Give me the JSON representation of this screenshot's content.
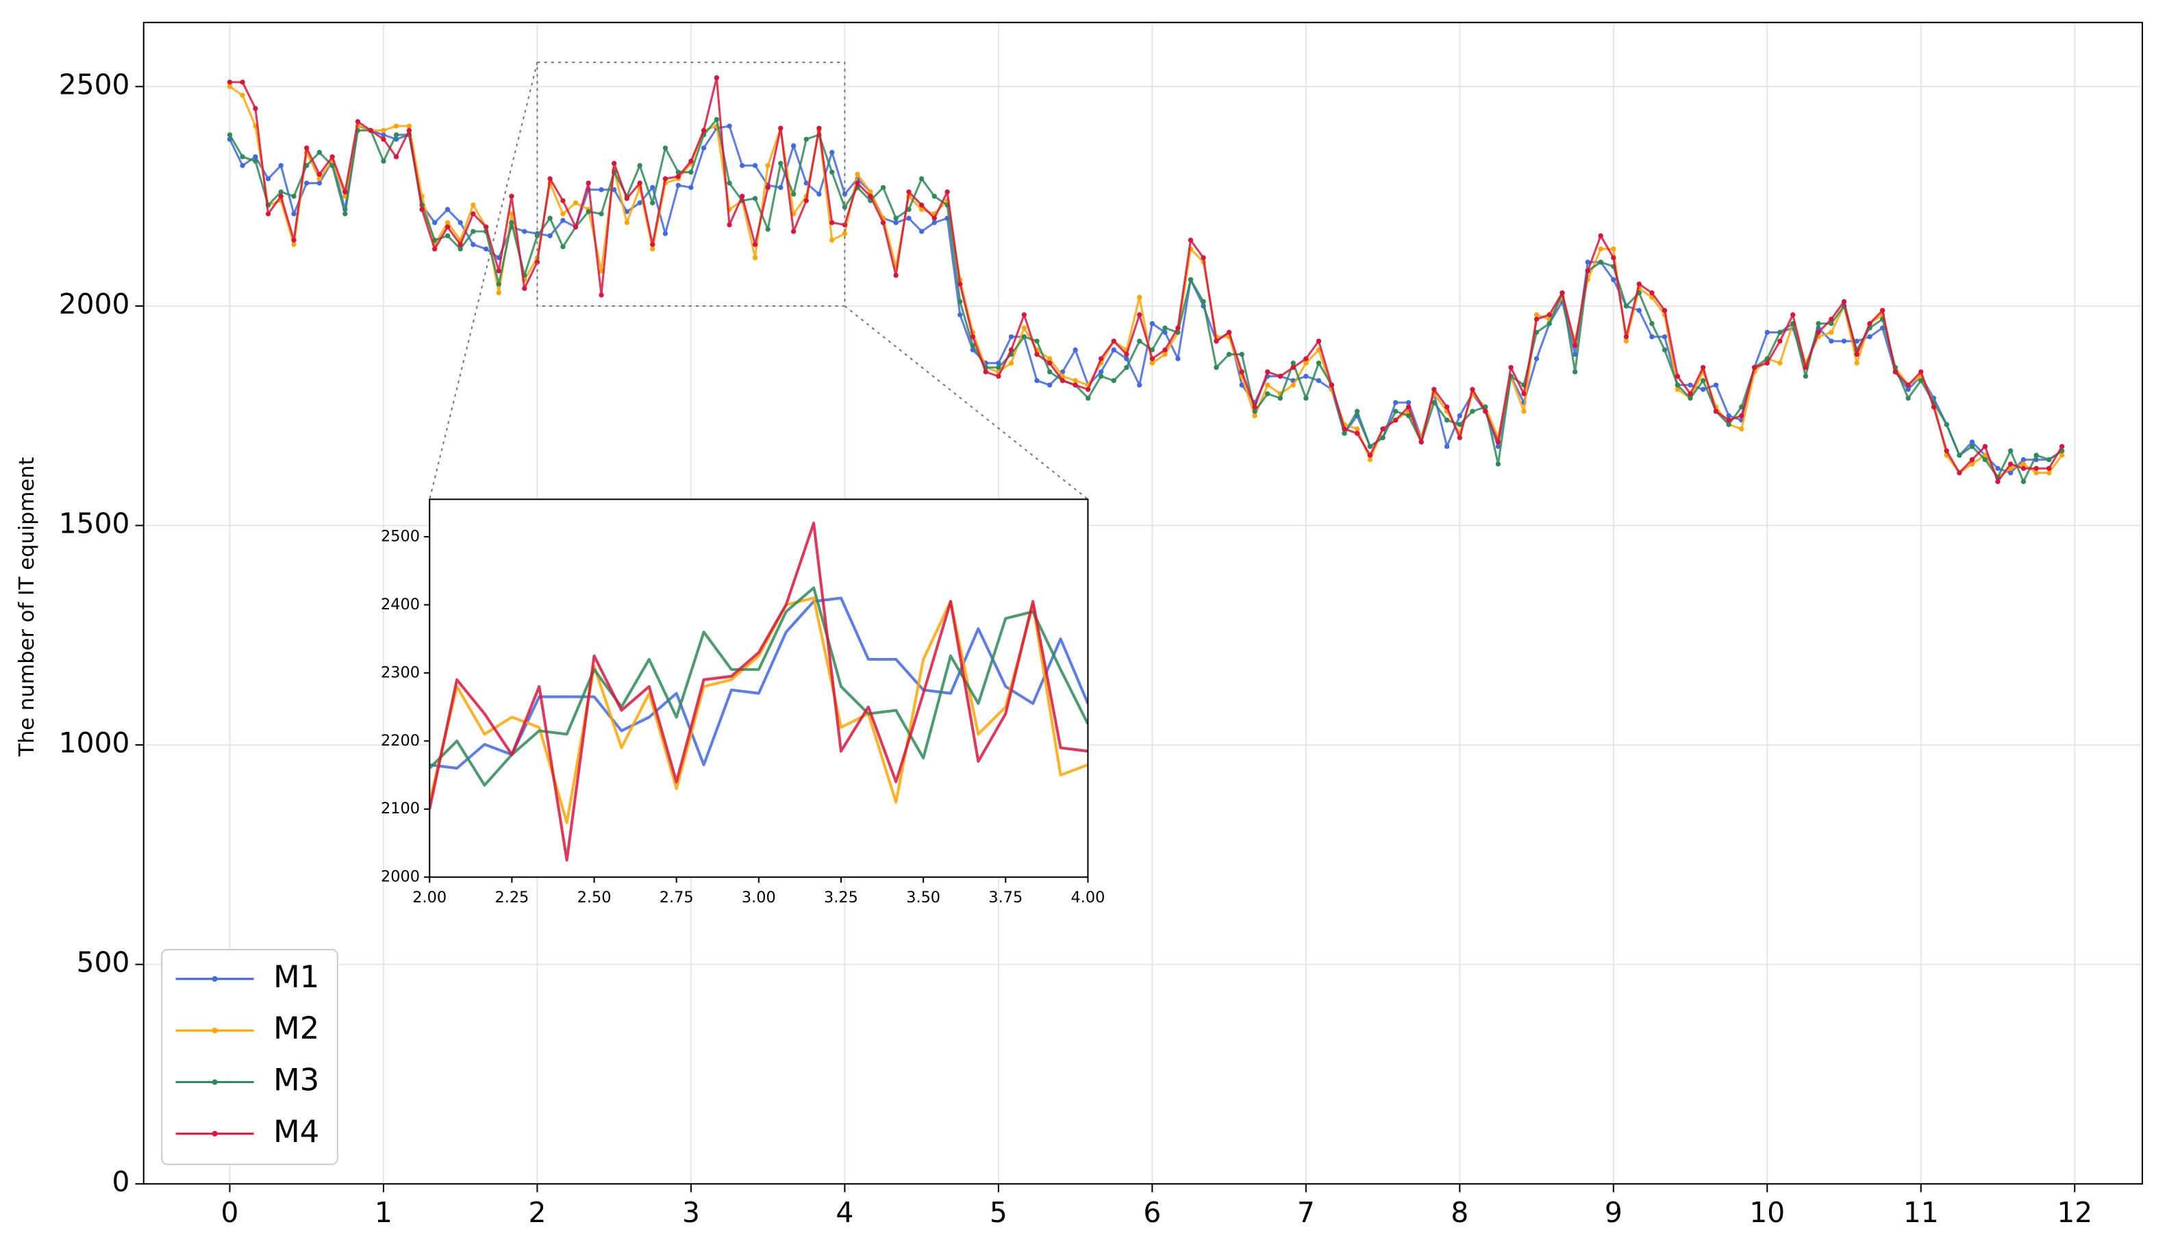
{
  "chart_data": {
    "type": "line",
    "ylabel": "The number of IT equipment",
    "x": [
      0,
      0.083,
      0.167,
      0.25,
      0.333,
      0.417,
      0.5,
      0.583,
      0.667,
      0.75,
      0.833,
      0.917,
      1,
      1.083,
      1.167,
      1.25,
      1.333,
      1.417,
      1.5,
      1.583,
      1.667,
      1.75,
      1.833,
      1.917,
      2,
      2.083,
      2.167,
      2.25,
      2.333,
      2.417,
      2.5,
      2.583,
      2.667,
      2.75,
      2.833,
      2.917,
      3,
      3.083,
      3.167,
      3.25,
      3.333,
      3.417,
      3.5,
      3.583,
      3.667,
      3.75,
      3.833,
      3.917,
      4,
      4.083,
      4.167,
      4.25,
      4.333,
      4.417,
      4.5,
      4.583,
      4.667,
      4.75,
      4.833,
      4.917,
      5,
      5.083,
      5.167,
      5.25,
      5.333,
      5.417,
      5.5,
      5.583,
      5.667,
      5.75,
      5.833,
      5.917,
      6,
      6.083,
      6.167,
      6.25,
      6.333,
      6.417,
      6.5,
      6.583,
      6.667,
      6.75,
      6.833,
      6.917,
      7,
      7.083,
      7.167,
      7.25,
      7.333,
      7.417,
      7.5,
      7.583,
      7.667,
      7.75,
      7.833,
      7.917,
      8,
      8.083,
      8.167,
      8.25,
      8.333,
      8.417,
      8.5,
      8.583,
      8.667,
      8.75,
      8.833,
      8.917,
      9,
      9.083,
      9.167,
      9.25,
      9.333,
      9.417,
      9.5,
      9.583,
      9.667,
      9.75,
      9.833,
      9.917,
      10,
      10.083,
      10.167,
      10.25,
      10.333,
      10.417,
      10.5,
      10.583,
      10.667,
      10.75,
      10.833,
      10.917,
      11,
      11.083,
      11.167,
      11.25,
      11.333,
      11.417,
      11.5,
      11.583,
      11.667,
      11.75,
      11.833,
      11.917
    ],
    "series": [
      {
        "name": "M1",
        "color": "#4169e1",
        "values": [
          2380,
          2320,
          2340,
          2290,
          2320,
          2210,
          2280,
          2280,
          2330,
          2220,
          2410,
          2400,
          2390,
          2380,
          2390,
          2230,
          2190,
          2220,
          2190,
          2140,
          2130,
          2110,
          2180,
          2170,
          2165,
          2160,
          2195,
          2180,
          2265,
          2265,
          2265,
          2215,
          2235,
          2270,
          2165,
          2275,
          2270,
          2360,
          2405,
          2410,
          2320,
          2320,
          2275,
          2270,
          2365,
          2280,
          2255,
          2350,
          2255,
          2290,
          2260,
          2200,
          2190,
          2200,
          2170,
          2190,
          2200,
          1980,
          1900,
          1870,
          1870,
          1930,
          1930,
          1830,
          1820,
          1850,
          1900,
          1820,
          1850,
          1900,
          1880,
          1820,
          1960,
          1940,
          1880,
          2060,
          2000,
          1920,
          1940,
          1820,
          1780,
          1840,
          1840,
          1830,
          1840,
          1830,
          1810,
          1710,
          1750,
          1680,
          1700,
          1780,
          1780,
          1700,
          1800,
          1680,
          1750,
          1800,
          1760,
          1680,
          1840,
          1780,
          1880,
          1960,
          2010,
          1890,
          2100,
          2100,
          2060,
          2000,
          1990,
          1930,
          1930,
          1820,
          1820,
          1810,
          1820,
          1750,
          1740,
          1860,
          1940,
          1940,
          1950,
          1860,
          1950,
          1920,
          1920,
          1920,
          1930,
          1950,
          1850,
          1810,
          1840,
          1790,
          1730,
          1660,
          1690,
          1660,
          1630,
          1620,
          1650,
          1650,
          1650,
          1670
        ]
      },
      {
        "name": "M2",
        "color": "#ffa500",
        "values": [
          2500,
          2480,
          2410,
          2230,
          2240,
          2140,
          2350,
          2290,
          2330,
          2250,
          2410,
          2400,
          2400,
          2410,
          2410,
          2250,
          2140,
          2190,
          2150,
          2230,
          2180,
          2030,
          2210,
          2060,
          2110,
          2280,
          2210,
          2235,
          2220,
          2080,
          2310,
          2190,
          2270,
          2130,
          2280,
          2290,
          2325,
          2400,
          2410,
          2220,
          2240,
          2110,
          2320,
          2405,
          2210,
          2250,
          2400,
          2150,
          2165,
          2300,
          2260,
          2200,
          2090,
          2250,
          2220,
          2210,
          2240,
          2060,
          1940,
          1860,
          1850,
          1870,
          1950,
          1900,
          1880,
          1840,
          1830,
          1820,
          1870,
          1920,
          1900,
          2020,
          1870,
          1890,
          1940,
          2130,
          2100,
          1930,
          1930,
          1840,
          1750,
          1820,
          1800,
          1820,
          1870,
          1900,
          1810,
          1730,
          1720,
          1650,
          1720,
          1740,
          1760,
          1700,
          1800,
          1760,
          1710,
          1800,
          1770,
          1700,
          1840,
          1760,
          1980,
          1970,
          2020,
          1920,
          2060,
          2130,
          2130,
          1920,
          2040,
          2020,
          1980,
          1810,
          1790,
          1850,
          1770,
          1730,
          1720,
          1850,
          1880,
          1870,
          1960,
          1870,
          1930,
          1940,
          2000,
          1870,
          1960,
          1980,
          1860,
          1820,
          1840,
          1780,
          1660,
          1620,
          1640,
          1660,
          1610,
          1630,
          1640,
          1620,
          1620,
          1660
        ]
      },
      {
        "name": "M3",
        "color": "#2e8b57",
        "values": [
          2390,
          2340,
          2330,
          2230,
          2260,
          2250,
          2320,
          2350,
          2320,
          2210,
          2400,
          2400,
          2330,
          2390,
          2390,
          2230,
          2150,
          2160,
          2130,
          2170,
          2170,
          2050,
          2190,
          2070,
          2160,
          2200,
          2135,
          2180,
          2215,
          2210,
          2305,
          2250,
          2320,
          2235,
          2360,
          2305,
          2305,
          2390,
          2425,
          2280,
          2240,
          2245,
          2175,
          2325,
          2255,
          2380,
          2390,
          2305,
          2225,
          2270,
          2240,
          2270,
          2200,
          2220,
          2290,
          2250,
          2230,
          2010,
          1910,
          1860,
          1860,
          1890,
          1930,
          1920,
          1850,
          1830,
          1820,
          1790,
          1840,
          1830,
          1860,
          1920,
          1900,
          1950,
          1940,
          2060,
          2010,
          1860,
          1890,
          1890,
          1760,
          1800,
          1790,
          1870,
          1790,
          1870,
          1820,
          1710,
          1760,
          1680,
          1700,
          1760,
          1750,
          1690,
          1780,
          1740,
          1730,
          1760,
          1770,
          1640,
          1840,
          1820,
          1940,
          1960,
          2030,
          1850,
          2080,
          2100,
          2090,
          2000,
          2030,
          1960,
          1900,
          1820,
          1790,
          1830,
          1760,
          1730,
          1770,
          1860,
          1880,
          1940,
          1960,
          1840,
          1960,
          1960,
          2000,
          1900,
          1950,
          1970,
          1860,
          1790,
          1830,
          1780,
          1730,
          1660,
          1680,
          1650,
          1610,
          1670,
          1600,
          1660,
          1650,
          1670
        ]
      },
      {
        "name": "M4",
        "color": "#dc143c",
        "values": [
          2510,
          2510,
          2450,
          2210,
          2250,
          2150,
          2360,
          2300,
          2340,
          2260,
          2420,
          2400,
          2380,
          2340,
          2400,
          2220,
          2130,
          2180,
          2140,
          2210,
          2180,
          2080,
          2250,
          2040,
          2100,
          2290,
          2240,
          2180,
          2280,
          2025,
          2325,
          2245,
          2280,
          2140,
          2290,
          2295,
          2330,
          2400,
          2520,
          2185,
          2250,
          2140,
          2270,
          2405,
          2170,
          2240,
          2405,
          2190,
          2185,
          2280,
          2250,
          2190,
          2070,
          2260,
          2230,
          2200,
          2260,
          2050,
          1930,
          1850,
          1840,
          1900,
          1980,
          1890,
          1870,
          1830,
          1820,
          1810,
          1880,
          1920,
          1890,
          1980,
          1880,
          1900,
          1950,
          2150,
          2110,
          1920,
          1940,
          1850,
          1770,
          1850,
          1840,
          1860,
          1880,
          1920,
          1820,
          1720,
          1710,
          1660,
          1720,
          1740,
          1770,
          1690,
          1810,
          1770,
          1700,
          1810,
          1760,
          1690,
          1860,
          1800,
          1970,
          1980,
          2030,
          1910,
          2080,
          2160,
          2110,
          1930,
          2050,
          2030,
          1990,
          1840,
          1800,
          1860,
          1760,
          1740,
          1750,
          1860,
          1870,
          1920,
          1980,
          1860,
          1940,
          1970,
          2010,
          1890,
          1960,
          1990,
          1850,
          1820,
          1850,
          1770,
          1670,
          1620,
          1650,
          1680,
          1600,
          1640,
          1630,
          1630,
          1630,
          1680
        ]
      }
    ],
    "xlim": [
      -0.56,
      12.44
    ],
    "ylim": [
      0,
      2646
    ],
    "xticks": [
      0,
      1,
      2,
      3,
      4,
      5,
      6,
      7,
      8,
      9,
      10,
      11,
      12
    ],
    "yticks": [
      0,
      500,
      1000,
      1500,
      2000,
      2500
    ],
    "grid": true,
    "legend": "lower left",
    "inset": {
      "xlim": [
        2,
        4
      ],
      "ylim": [
        2000,
        2555
      ],
      "xticks": [
        {
          "value": 2,
          "label": "2.00"
        },
        2.25,
        {
          "value": 2.5,
          "label": "2.50"
        },
        2.75,
        {
          "value": 3,
          "label": "3.00"
        },
        3.25,
        {
          "value": 3.5,
          "label": "3.50"
        },
        3.75,
        {
          "value": 4,
          "label": "4.00"
        }
      ],
      "yticks": [
        2000,
        2100,
        2200,
        2300,
        2400,
        2500
      ]
    }
  }
}
